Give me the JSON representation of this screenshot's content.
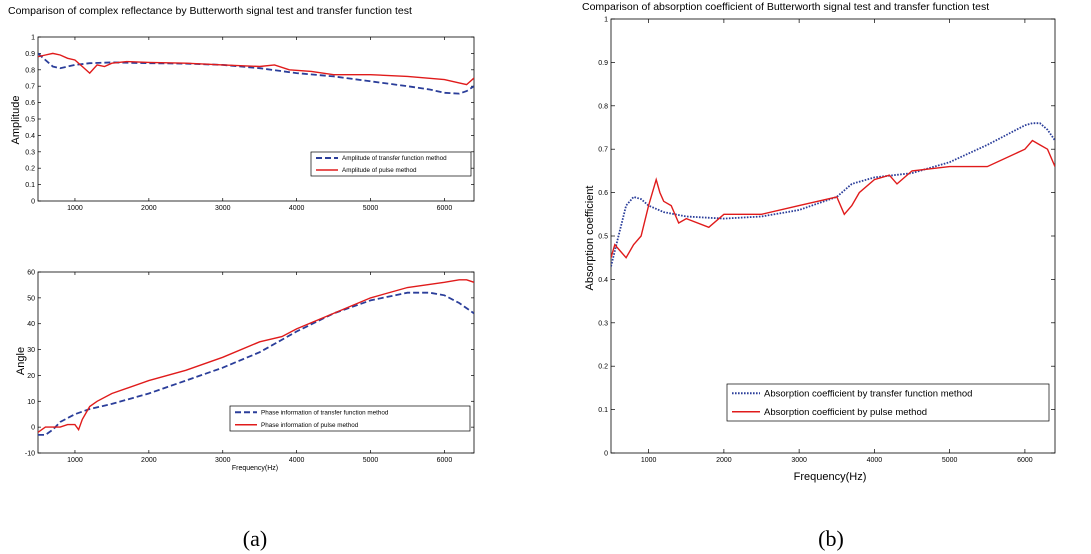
{
  "figure": {
    "caption_a": "(a)",
    "caption_b": "(b)"
  },
  "colors": {
    "transfer": "#2b3e9a",
    "pulse": "#e01b1b"
  },
  "chart_data": [
    {
      "id": "amp",
      "type": "line",
      "title": "Comparison of complex reflectance by Butterworth signal test and transfer function test",
      "xlabel": "",
      "ylabel": "Amplitude",
      "xlim": [
        500,
        6400
      ],
      "ylim": [
        0,
        1
      ],
      "xticks": [
        1000,
        2000,
        3000,
        4000,
        5000,
        6000
      ],
      "yticks": [
        0,
        0.1,
        0.2,
        0.3,
        0.4,
        0.5,
        0.6,
        0.7,
        0.8,
        0.9,
        1
      ],
      "legend": "lower-right",
      "series": [
        {
          "name": "Amplitude of transfer function method",
          "style": "dashed",
          "x": [
            500,
            600,
            700,
            800,
            1000,
            1200,
            1500,
            2000,
            2500,
            3000,
            3500,
            4000,
            4500,
            5000,
            5500,
            5800,
            6000,
            6200,
            6300,
            6400
          ],
          "y": [
            0.9,
            0.86,
            0.82,
            0.81,
            0.83,
            0.84,
            0.845,
            0.84,
            0.838,
            0.83,
            0.81,
            0.78,
            0.76,
            0.73,
            0.7,
            0.68,
            0.66,
            0.655,
            0.67,
            0.7
          ]
        },
        {
          "name": "Amplitude of pulse method",
          "style": "solid",
          "x": [
            500,
            600,
            700,
            800,
            900,
            1000,
            1100,
            1200,
            1300,
            1400,
            1500,
            1700,
            2000,
            2500,
            3000,
            3500,
            3700,
            3900,
            4200,
            4500,
            5000,
            5500,
            6000,
            6200,
            6300,
            6400
          ],
          "y": [
            0.88,
            0.89,
            0.9,
            0.89,
            0.87,
            0.86,
            0.82,
            0.78,
            0.83,
            0.82,
            0.84,
            0.85,
            0.845,
            0.84,
            0.83,
            0.82,
            0.83,
            0.8,
            0.79,
            0.77,
            0.77,
            0.76,
            0.74,
            0.72,
            0.71,
            0.75
          ]
        }
      ]
    },
    {
      "id": "angle",
      "type": "line",
      "title": "",
      "xlabel": "Frequency(Hz)",
      "ylabel": "Angle",
      "xlim": [
        500,
        6400
      ],
      "ylim": [
        -10,
        60
      ],
      "xticks": [
        1000,
        2000,
        3000,
        4000,
        5000,
        6000
      ],
      "yticks": [
        -10,
        0,
        10,
        20,
        30,
        40,
        50,
        60
      ],
      "legend": "lower-right",
      "series": [
        {
          "name": "Phase information of transfer function method",
          "style": "dashed",
          "x": [
            500,
            600,
            700,
            800,
            1000,
            1200,
            1500,
            2000,
            2500,
            3000,
            3500,
            4000,
            4500,
            5000,
            5500,
            5800,
            6000,
            6200,
            6400
          ],
          "y": [
            -3,
            -3,
            -1,
            2,
            5,
            7,
            9,
            13,
            18,
            23,
            29,
            37,
            44,
            49,
            52,
            52,
            51,
            48,
            44
          ]
        },
        {
          "name": "Phase information of pulse method",
          "style": "solid",
          "x": [
            500,
            600,
            700,
            800,
            900,
            1000,
            1050,
            1100,
            1200,
            1300,
            1500,
            2000,
            2500,
            3000,
            3500,
            3800,
            4000,
            4500,
            5000,
            5500,
            6000,
            6200,
            6300,
            6400
          ],
          "y": [
            -2,
            0,
            0,
            0,
            1,
            1,
            -1,
            3,
            8,
            10,
            13,
            18,
            22,
            27,
            33,
            35,
            38,
            44,
            50,
            54,
            56,
            57,
            57,
            56
          ]
        }
      ]
    },
    {
      "id": "abs",
      "type": "line",
      "title": "Comparison of absorption coefficient of Butterworth signal test and transfer function test",
      "xlabel": "Frequency(Hz)",
      "ylabel": "Absorption coefficient",
      "xlim": [
        500,
        6400
      ],
      "ylim": [
        0,
        1
      ],
      "xticks": [
        1000,
        2000,
        3000,
        4000,
        5000,
        6000
      ],
      "yticks": [
        0,
        0.1,
        0.2,
        0.3,
        0.4,
        0.5,
        0.6,
        0.7,
        0.8,
        0.9,
        1
      ],
      "legend": "lower-right",
      "series": [
        {
          "name": "Absorption coefficient by transfer function method",
          "style": "dotted",
          "x": [
            500,
            600,
            700,
            800,
            900,
            1000,
            1200,
            1500,
            2000,
            2500,
            3000,
            3500,
            3700,
            4000,
            4500,
            5000,
            5500,
            6000,
            6100,
            6200,
            6300,
            6400
          ],
          "y": [
            0.43,
            0.5,
            0.57,
            0.59,
            0.585,
            0.57,
            0.555,
            0.545,
            0.54,
            0.545,
            0.56,
            0.59,
            0.62,
            0.635,
            0.645,
            0.67,
            0.71,
            0.755,
            0.76,
            0.76,
            0.745,
            0.72
          ]
        },
        {
          "name": "Absorption coefficient by pulse method",
          "style": "solid",
          "x": [
            500,
            550,
            600,
            700,
            800,
            900,
            1000,
            1050,
            1100,
            1150,
            1200,
            1300,
            1400,
            1500,
            1800,
            2000,
            2500,
            3000,
            3500,
            3600,
            3700,
            3800,
            4000,
            4200,
            4300,
            4500,
            5000,
            5500,
            6000,
            6100,
            6200,
            6300,
            6400
          ],
          "y": [
            0.45,
            0.48,
            0.47,
            0.45,
            0.48,
            0.5,
            0.57,
            0.6,
            0.63,
            0.6,
            0.58,
            0.57,
            0.53,
            0.54,
            0.52,
            0.55,
            0.55,
            0.57,
            0.59,
            0.55,
            0.57,
            0.6,
            0.63,
            0.64,
            0.62,
            0.65,
            0.66,
            0.66,
            0.7,
            0.72,
            0.71,
            0.7,
            0.66
          ]
        }
      ]
    }
  ]
}
